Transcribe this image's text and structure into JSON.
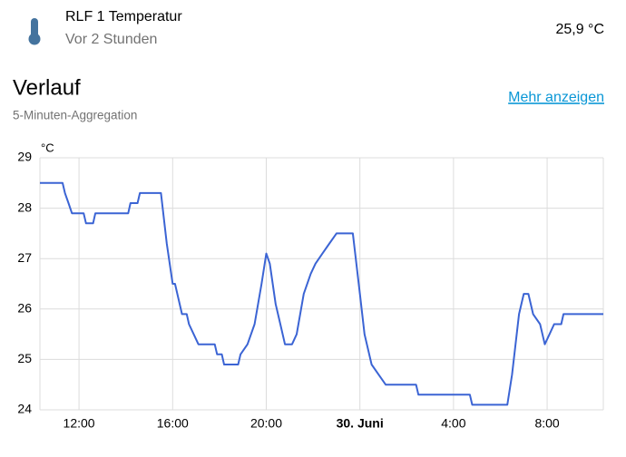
{
  "header": {
    "title": "RLF 1 Temperatur",
    "subtitle": "Vor 2 Stunden",
    "state": "25,9 °C"
  },
  "section": {
    "title": "Verlauf",
    "subtitle": "5-Minuten-Aggregation",
    "link": "Mehr anzeigen"
  },
  "chart_data": {
    "type": "line",
    "y_unit": "°C",
    "color": "#3b64d4",
    "grid": true,
    "x": [
      10.33,
      11.3,
      11.4,
      11.55,
      11.7,
      12.2,
      12.3,
      12.6,
      12.7,
      14.1,
      14.2,
      14.5,
      14.6,
      15.5,
      15.75,
      16.0,
      16.1,
      16.4,
      16.6,
      16.7,
      16.9,
      17.1,
      17.8,
      17.9,
      18.1,
      18.2,
      18.8,
      18.9,
      19.2,
      19.5,
      19.8,
      20.0,
      20.15,
      20.4,
      20.6,
      20.8,
      21.1,
      21.3,
      21.6,
      21.9,
      22.1,
      22.4,
      22.7,
      23.0,
      23.7,
      24.0,
      24.2,
      24.5,
      24.8,
      25.1,
      26.4,
      26.5,
      28.7,
      28.8,
      30.3,
      30.5,
      30.8,
      31.0,
      31.2,
      31.4,
      31.7,
      31.9,
      32.1,
      32.3,
      32.6,
      32.7,
      34.4
    ],
    "values": [
      28.5,
      28.5,
      28.3,
      28.1,
      27.9,
      27.9,
      27.7,
      27.7,
      27.9,
      27.9,
      28.1,
      28.1,
      28.3,
      28.3,
      27.3,
      26.5,
      26.5,
      25.9,
      25.9,
      25.7,
      25.5,
      25.3,
      25.3,
      25.1,
      25.1,
      24.9,
      24.9,
      25.1,
      25.3,
      25.7,
      26.5,
      27.1,
      26.9,
      26.1,
      25.7,
      25.3,
      25.3,
      25.5,
      26.3,
      26.7,
      26.9,
      27.1,
      27.3,
      27.5,
      27.5,
      26.3,
      25.5,
      24.9,
      24.7,
      24.5,
      24.5,
      24.3,
      24.3,
      24.1,
      24.1,
      24.7,
      25.9,
      26.3,
      26.3,
      25.9,
      25.7,
      25.3,
      25.5,
      25.7,
      25.7,
      25.9,
      25.9
    ],
    "xlim": [
      10.33,
      34.4
    ],
    "xticks": [
      {
        "value": 12,
        "label": "12:00"
      },
      {
        "value": 16,
        "label": "16:00"
      },
      {
        "value": 20,
        "label": "20:00"
      },
      {
        "value": 24,
        "label": "30. Juni",
        "bold": true
      },
      {
        "value": 28,
        "label": "4:00"
      },
      {
        "value": 32,
        "label": "8:00"
      }
    ],
    "ylim": [
      24,
      29
    ],
    "yticks": [
      24,
      25,
      26,
      27,
      28,
      29
    ]
  }
}
